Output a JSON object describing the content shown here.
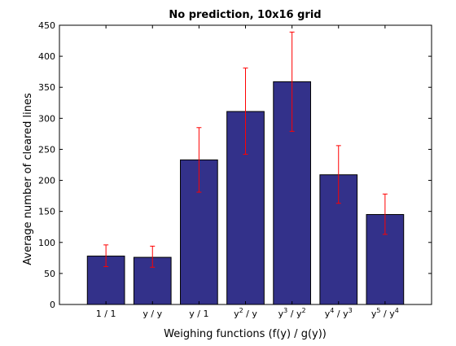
{
  "chart_data": {
    "type": "bar",
    "title": "No prediction, 10x16 grid",
    "xlabel": "Weighing functions (f(y) / g(y))",
    "ylabel": "Average number of cleared lines",
    "ylim": [
      0,
      450
    ],
    "yticks": [
      0,
      50,
      100,
      150,
      200,
      250,
      300,
      350,
      400,
      450
    ],
    "grid": false,
    "legend": "none",
    "categories": [
      {
        "label": "1 / 1",
        "parts": [
          {
            "t": "1 / 1"
          }
        ]
      },
      {
        "label": "y / y",
        "parts": [
          {
            "t": "y / y"
          }
        ]
      },
      {
        "label": "y / 1",
        "parts": [
          {
            "t": "y / 1"
          }
        ]
      },
      {
        "label": "y^2 / y",
        "parts": [
          {
            "t": "y"
          },
          {
            "t": "2",
            "sup": true
          },
          {
            "t": " / y"
          }
        ]
      },
      {
        "label": "y^3 / y^2",
        "parts": [
          {
            "t": "y"
          },
          {
            "t": "3",
            "sup": true
          },
          {
            "t": " / y"
          },
          {
            "t": "2",
            "sup": true
          }
        ]
      },
      {
        "label": "y^4 / y^3",
        "parts": [
          {
            "t": "y"
          },
          {
            "t": "4",
            "sup": true
          },
          {
            "t": " / y"
          },
          {
            "t": "3",
            "sup": true
          }
        ]
      },
      {
        "label": "y^5 / y^4",
        "parts": [
          {
            "t": "y"
          },
          {
            "t": "5",
            "sup": true
          },
          {
            "t": " / y"
          },
          {
            "t": "4",
            "sup": true
          }
        ]
      }
    ],
    "values": [
      78,
      76,
      233,
      311,
      359,
      209,
      145
    ],
    "error_low": [
      61,
      60,
      181,
      242,
      279,
      163,
      113
    ],
    "error_high": [
      96,
      94,
      285,
      381,
      439,
      256,
      178
    ],
    "colors": {
      "bar_fill": "#33318a",
      "bar_edge": "#000000",
      "error_bar": "#ff0000",
      "axes": "#000000"
    }
  }
}
